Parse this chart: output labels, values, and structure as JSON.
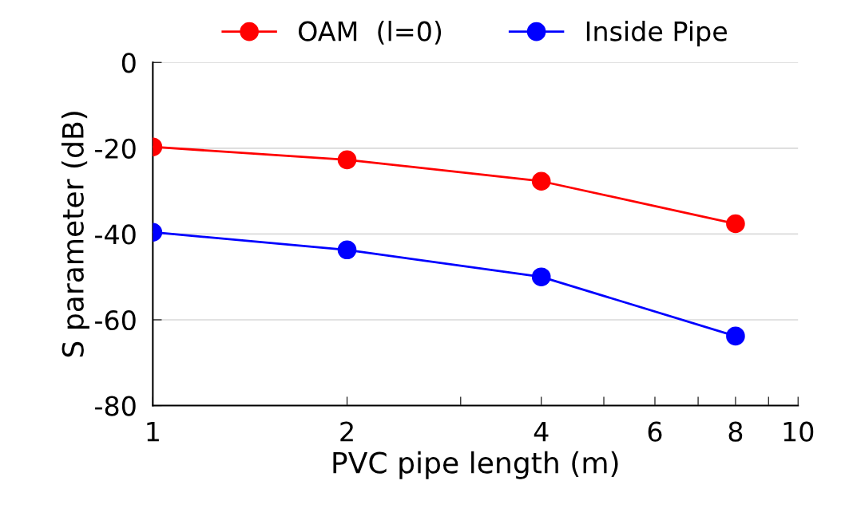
{
  "chart_data": {
    "type": "line",
    "xlabel": "PVC pipe length (m)",
    "ylabel": "S parameter (dB)",
    "x": [
      1,
      2,
      4,
      8
    ],
    "series": [
      {
        "name": "OAM  (l=0)",
        "color": "#ff0000",
        "values": [
          -19.7,
          -22.7,
          -27.7,
          -37.6
        ]
      },
      {
        "name": "Inside Pipe",
        "color": "#0000ff",
        "values": [
          -39.6,
          -43.7,
          -50,
          -63.8
        ]
      }
    ],
    "log": "x",
    "xlim": [
      1,
      10
    ],
    "xticks": [
      1,
      2,
      {
        "value": 3,
        "label": null
      },
      4,
      {
        "value": 5,
        "label": null
      },
      6,
      {
        "value": 7,
        "label": null
      },
      8,
      {
        "value": 9,
        "label": null
      },
      10
    ],
    "ylim": [
      -80,
      0
    ],
    "yticks": [
      -80,
      -60,
      -40,
      -20,
      0
    ],
    "grid": "y",
    "legend": "top",
    "marker": "circle",
    "line_style": "solid"
  }
}
